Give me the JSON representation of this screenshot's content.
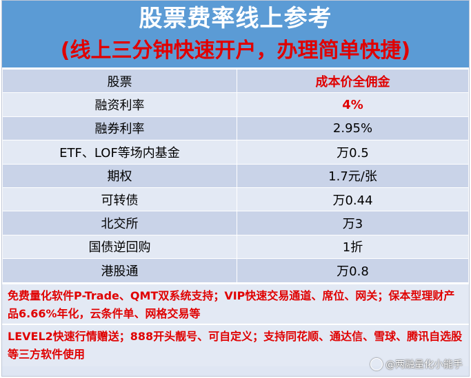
{
  "header": {
    "title": "股票费率线上参考",
    "subtitle": "(线上三分钟快速开户，办理简单快捷)"
  },
  "table": {
    "rows": [
      {
        "label": "股票",
        "value": "成本价全佣金",
        "highlight": true
      },
      {
        "label": "融资利率",
        "value": "4%",
        "highlight": true
      },
      {
        "label": "融券利率",
        "value": "2.95%",
        "highlight": false
      },
      {
        "label": "ETF、LOF等场内基金",
        "value": "万0.5",
        "highlight": false
      },
      {
        "label": "期权",
        "value": "1.7元/张",
        "highlight": false
      },
      {
        "label": "可转债",
        "value": "万0.44",
        "highlight": false
      },
      {
        "label": "北交所",
        "value": "万3",
        "highlight": false
      },
      {
        "label": "国债逆回购",
        "value": "1折",
        "highlight": false
      },
      {
        "label": "港股通",
        "value": "万0.8",
        "highlight": false
      }
    ]
  },
  "notes": {
    "note1": "免费量化软件P-Trade、QMT双系统支持；VIP快速交易通道、席位、网关；保本型理财产品6.66%年化，云条件单、网格交易等",
    "note2": "LEVEL2快速行情赠送；888开头靓号、可自定义；支持同花顺、通达信、雪球、腾讯自选股等三方软件使用"
  },
  "watermark": "@两融量化小能手",
  "colors": {
    "header_bg": "#5b9bd5",
    "accent_red": "#e00000",
    "row_dark": "#c9d3e8",
    "row_light": "#e3e9f4"
  }
}
